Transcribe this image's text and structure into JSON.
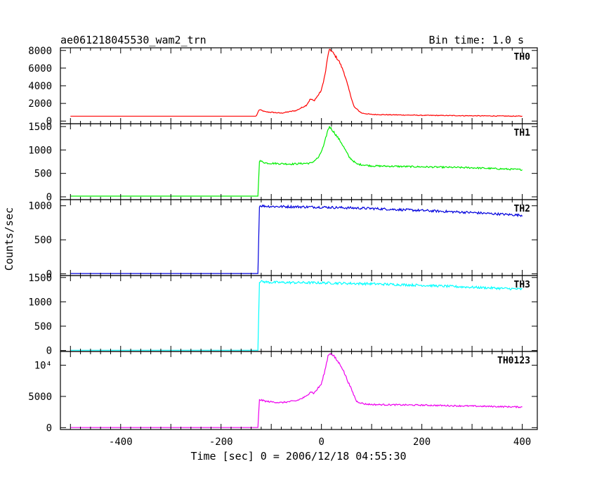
{
  "chart_data": {
    "type": "line",
    "title": "ae061218045530_wam2_trn",
    "subtitle": "Bin time: 1.0 s",
    "xlabel": "Time [sec] 0 = 2006/12/18 04:55:30",
    "ylabel": "Counts/sec",
    "xlim": [
      -520,
      430
    ],
    "xticks": [
      -400,
      -200,
      0,
      200,
      400
    ],
    "grid": false,
    "panels": [
      {
        "name": "TH0",
        "color": "#ff0000",
        "ylim": [
          -300,
          8300
        ],
        "yticks": [
          0,
          2000,
          4000,
          6000,
          8000
        ],
        "ytick_labels": [
          "0",
          "2000",
          "4000",
          "6000",
          "8000"
        ],
        "points": [
          [
            -500,
            550
          ],
          [
            -130,
            550
          ],
          [
            -124,
            1300
          ],
          [
            -112,
            1050
          ],
          [
            -80,
            900
          ],
          [
            -50,
            1200
          ],
          [
            -30,
            1800
          ],
          [
            -22,
            2500
          ],
          [
            -15,
            2300
          ],
          [
            -8,
            2800
          ],
          [
            0,
            3500
          ],
          [
            8,
            5500
          ],
          [
            13,
            7500
          ],
          [
            17,
            8150
          ],
          [
            22,
            7800
          ],
          [
            35,
            6800
          ],
          [
            45,
            5500
          ],
          [
            55,
            3500
          ],
          [
            65,
            1600
          ],
          [
            80,
            900
          ],
          [
            100,
            750
          ],
          [
            200,
            650
          ],
          [
            300,
            600
          ],
          [
            400,
            550
          ]
        ]
      },
      {
        "name": "TH1",
        "color": "#00ee00",
        "ylim": [
          -60,
          1560
        ],
        "yticks": [
          0,
          500,
          1000,
          1500
        ],
        "ytick_labels": [
          "0",
          "500",
          "1000",
          "1500"
        ],
        "points": [
          [
            -500,
            15
          ],
          [
            -126,
            15
          ],
          [
            -124,
            770
          ],
          [
            -110,
            720
          ],
          [
            -60,
            700
          ],
          [
            -20,
            720
          ],
          [
            -5,
            850
          ],
          [
            5,
            1100
          ],
          [
            12,
            1400
          ],
          [
            16,
            1500
          ],
          [
            25,
            1380
          ],
          [
            40,
            1150
          ],
          [
            55,
            850
          ],
          [
            70,
            700
          ],
          [
            100,
            660
          ],
          [
            200,
            640
          ],
          [
            300,
            620
          ],
          [
            400,
            580
          ]
        ]
      },
      {
        "name": "TH2",
        "color": "#0000dd",
        "ylim": [
          -25,
          1090
        ],
        "yticks": [
          0,
          500,
          1000
        ],
        "ytick_labels": [
          "0",
          "500",
          "1000"
        ],
        "points": [
          [
            -500,
            5
          ],
          [
            -126,
            5
          ],
          [
            -124,
            1000
          ],
          [
            -100,
            990
          ],
          [
            0,
            980
          ],
          [
            100,
            960
          ],
          [
            200,
            930
          ],
          [
            300,
            900
          ],
          [
            400,
            860
          ]
        ]
      },
      {
        "name": "TH3",
        "color": "#00ffff",
        "ylim": [
          -20,
          1540
        ],
        "yticks": [
          0,
          500,
          1000,
          1500
        ],
        "ytick_labels": [
          "0",
          "500",
          "1000",
          "1500"
        ],
        "points": [
          [
            -500,
            5
          ],
          [
            -126,
            5
          ],
          [
            -124,
            1420
          ],
          [
            -100,
            1400
          ],
          [
            0,
            1390
          ],
          [
            100,
            1370
          ],
          [
            200,
            1340
          ],
          [
            300,
            1300
          ],
          [
            400,
            1260
          ]
        ]
      },
      {
        "name": "TH0123",
        "color": "#ee00ee",
        "ylim": [
          -300,
          12200
        ],
        "yticks": [
          0,
          5000,
          10000
        ],
        "ytick_labels": [
          "0",
          "5000",
          "10⁴"
        ],
        "points": [
          [
            -500,
            20
          ],
          [
            -126,
            20
          ],
          [
            -124,
            4500
          ],
          [
            -110,
            4200
          ],
          [
            -80,
            4000
          ],
          [
            -50,
            4300
          ],
          [
            -30,
            5000
          ],
          [
            -22,
            5800
          ],
          [
            -15,
            5500
          ],
          [
            -8,
            6200
          ],
          [
            0,
            7000
          ],
          [
            8,
            9500
          ],
          [
            13,
            11500
          ],
          [
            17,
            12000
          ],
          [
            25,
            11400
          ],
          [
            40,
            9800
          ],
          [
            55,
            7000
          ],
          [
            70,
            4200
          ],
          [
            85,
            3800
          ],
          [
            100,
            3700
          ],
          [
            200,
            3600
          ],
          [
            300,
            3450
          ],
          [
            400,
            3300
          ]
        ]
      }
    ]
  }
}
